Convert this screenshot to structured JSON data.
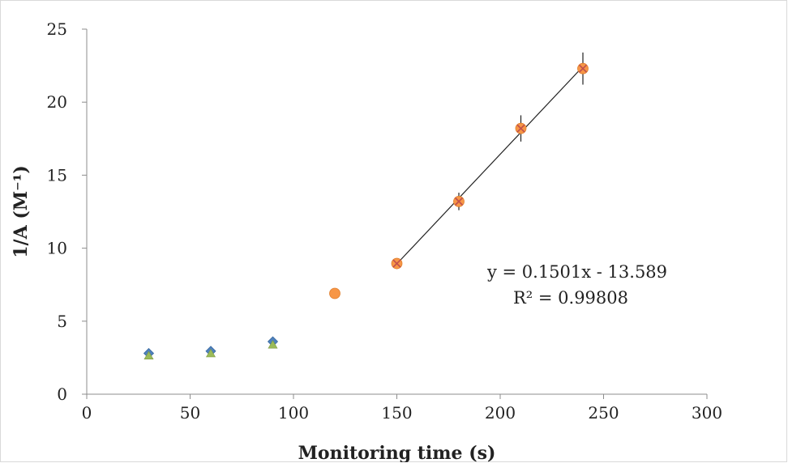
{
  "chart_data": {
    "type": "scatter",
    "title": "",
    "xlabel": "Monitoring time (s)",
    "ylabel": "1/A (M⁻¹)",
    "xlim": [
      0,
      300
    ],
    "ylim": [
      0,
      25
    ],
    "x_ticks": [
      0,
      50,
      100,
      150,
      200,
      250,
      300
    ],
    "y_ticks": [
      0,
      5,
      10,
      15,
      20,
      25
    ],
    "grid": false,
    "legend": "none",
    "series": [
      {
        "marker": "diamond",
        "color": "#4f81bd",
        "points": [
          [
            30,
            2.8
          ],
          [
            60,
            2.95
          ],
          [
            90,
            3.6
          ]
        ]
      },
      {
        "marker": "triangle",
        "color": "#9bbb59",
        "points": [
          [
            30,
            2.65
          ],
          [
            60,
            2.8
          ],
          [
            90,
            3.4
          ]
        ]
      },
      {
        "marker": "circle",
        "color": "#f79646",
        "points": [
          [
            120,
            6.9
          ],
          [
            150,
            8.95
          ],
          [
            180,
            13.2
          ],
          [
            210,
            18.2
          ],
          [
            240,
            22.3
          ]
        ]
      },
      {
        "marker": "x",
        "color": "#c0504d",
        "points": [
          [
            150,
            8.95
          ],
          [
            180,
            13.2
          ],
          [
            210,
            18.2
          ],
          [
            240,
            22.3
          ]
        ]
      }
    ],
    "error_bars": [
      {
        "x": 150,
        "y": 8.95,
        "err": 0.25
      },
      {
        "x": 180,
        "y": 13.2,
        "err": 0.6
      },
      {
        "x": 210,
        "y": 18.2,
        "err": 0.9
      },
      {
        "x": 240,
        "y": 22.3,
        "err": 1.1
      }
    ],
    "trendline": {
      "slope": 0.1501,
      "intercept": -13.589,
      "x_range": [
        150,
        240
      ],
      "equation": "y = 0.1501x - 13.589",
      "r_squared": "R² = 0.99808"
    }
  }
}
